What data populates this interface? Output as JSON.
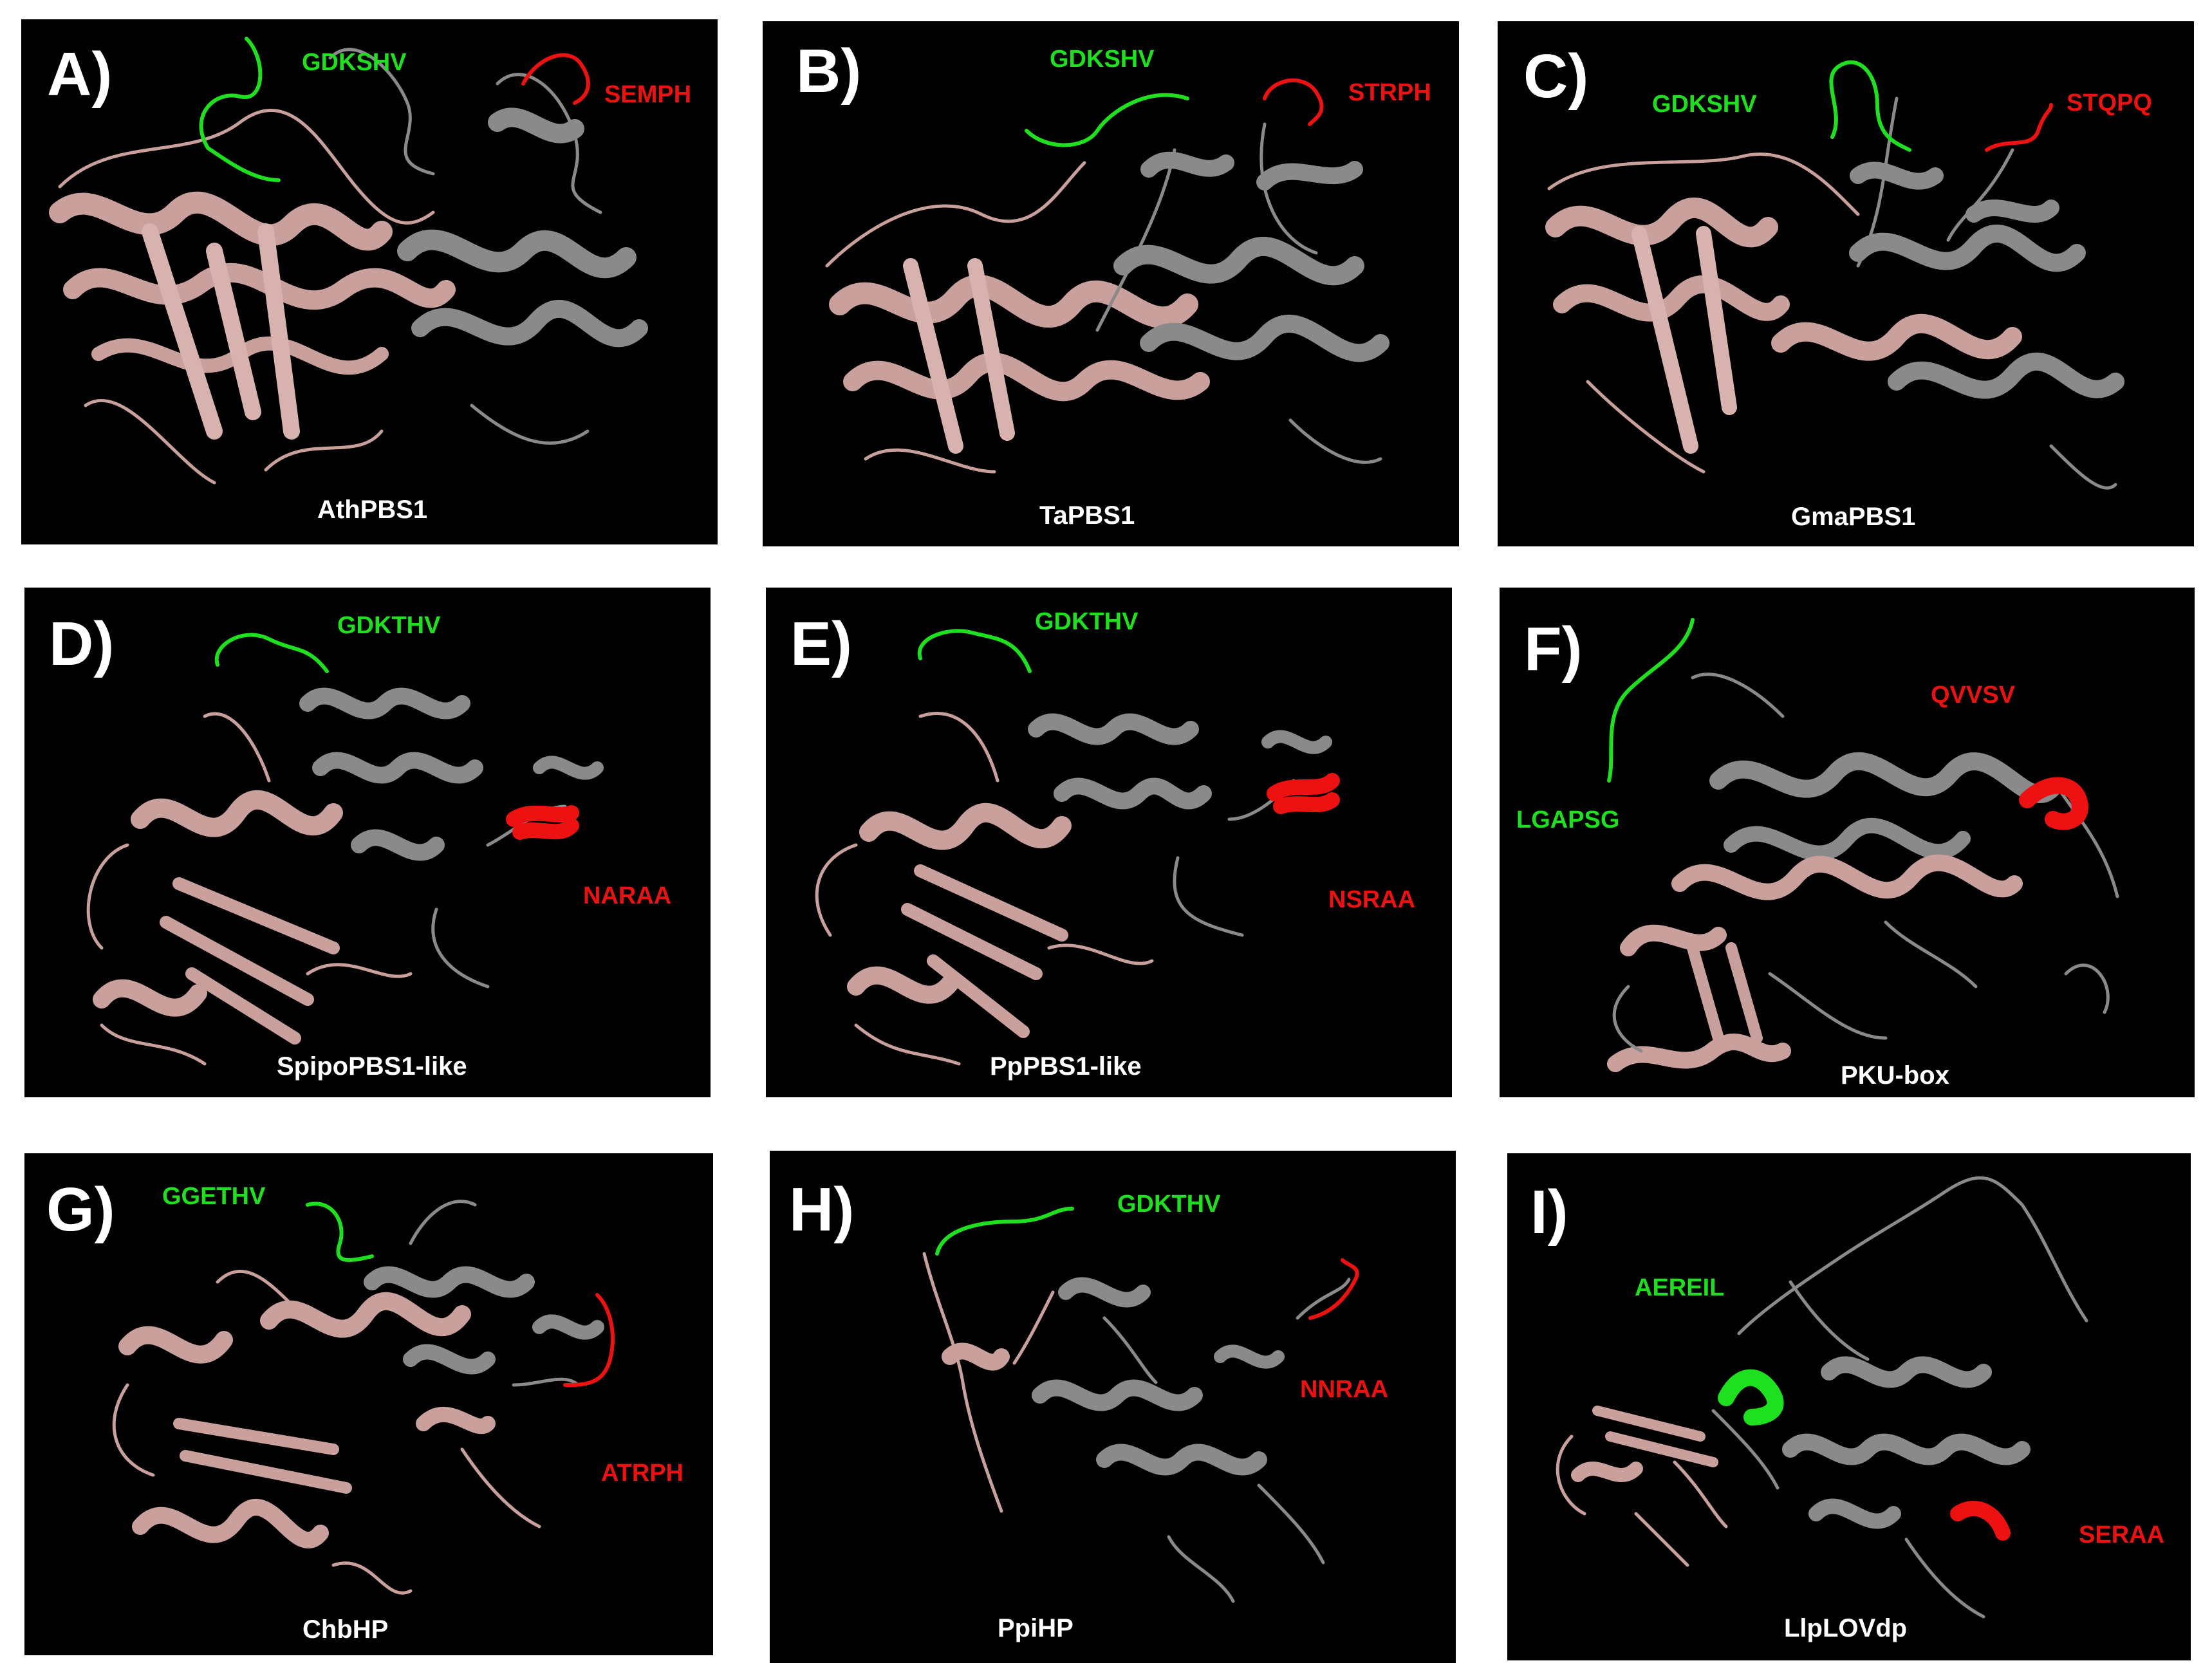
{
  "colors": {
    "background": "#000000",
    "domain_primary": "#c9a09c",
    "domain_secondary": "#8a8a8a",
    "motif_green": "#1fe01f",
    "motif_red": "#ee1111",
    "label_white": "#ffffff"
  },
  "panels": [
    {
      "letter": "A)",
      "name": "AthPBS1",
      "green_motif": "GDKSHV",
      "red_motif": "SEMPH"
    },
    {
      "letter": "B)",
      "name": "TaPBS1",
      "green_motif": "GDKSHV",
      "red_motif": "STRPH"
    },
    {
      "letter": "C)",
      "name": "GmaPBS1",
      "green_motif": "GDKSHV",
      "red_motif": "STQPQ"
    },
    {
      "letter": "D)",
      "name": "SpipoPBS1-like",
      "green_motif": "GDKTHV",
      "red_motif": "NARAA"
    },
    {
      "letter": "E)",
      "name": "PpPBS1-like",
      "green_motif": "GDKTHV",
      "red_motif": "NSRAA"
    },
    {
      "letter": "F)",
      "name": "PKU-box",
      "green_motif": "LGAPSG",
      "red_motif": "QVVSV"
    },
    {
      "letter": "G)",
      "name": "ChbHP",
      "green_motif": "GGETHV",
      "red_motif": "ATRPH"
    },
    {
      "letter": "H)",
      "name": "PpiHP",
      "green_motif": "GDKTHV",
      "red_motif": "NNRAA"
    },
    {
      "letter": "I)",
      "name": "LlpLOVdp",
      "green_motif": "AEREIL",
      "red_motif": "SERAA"
    }
  ]
}
